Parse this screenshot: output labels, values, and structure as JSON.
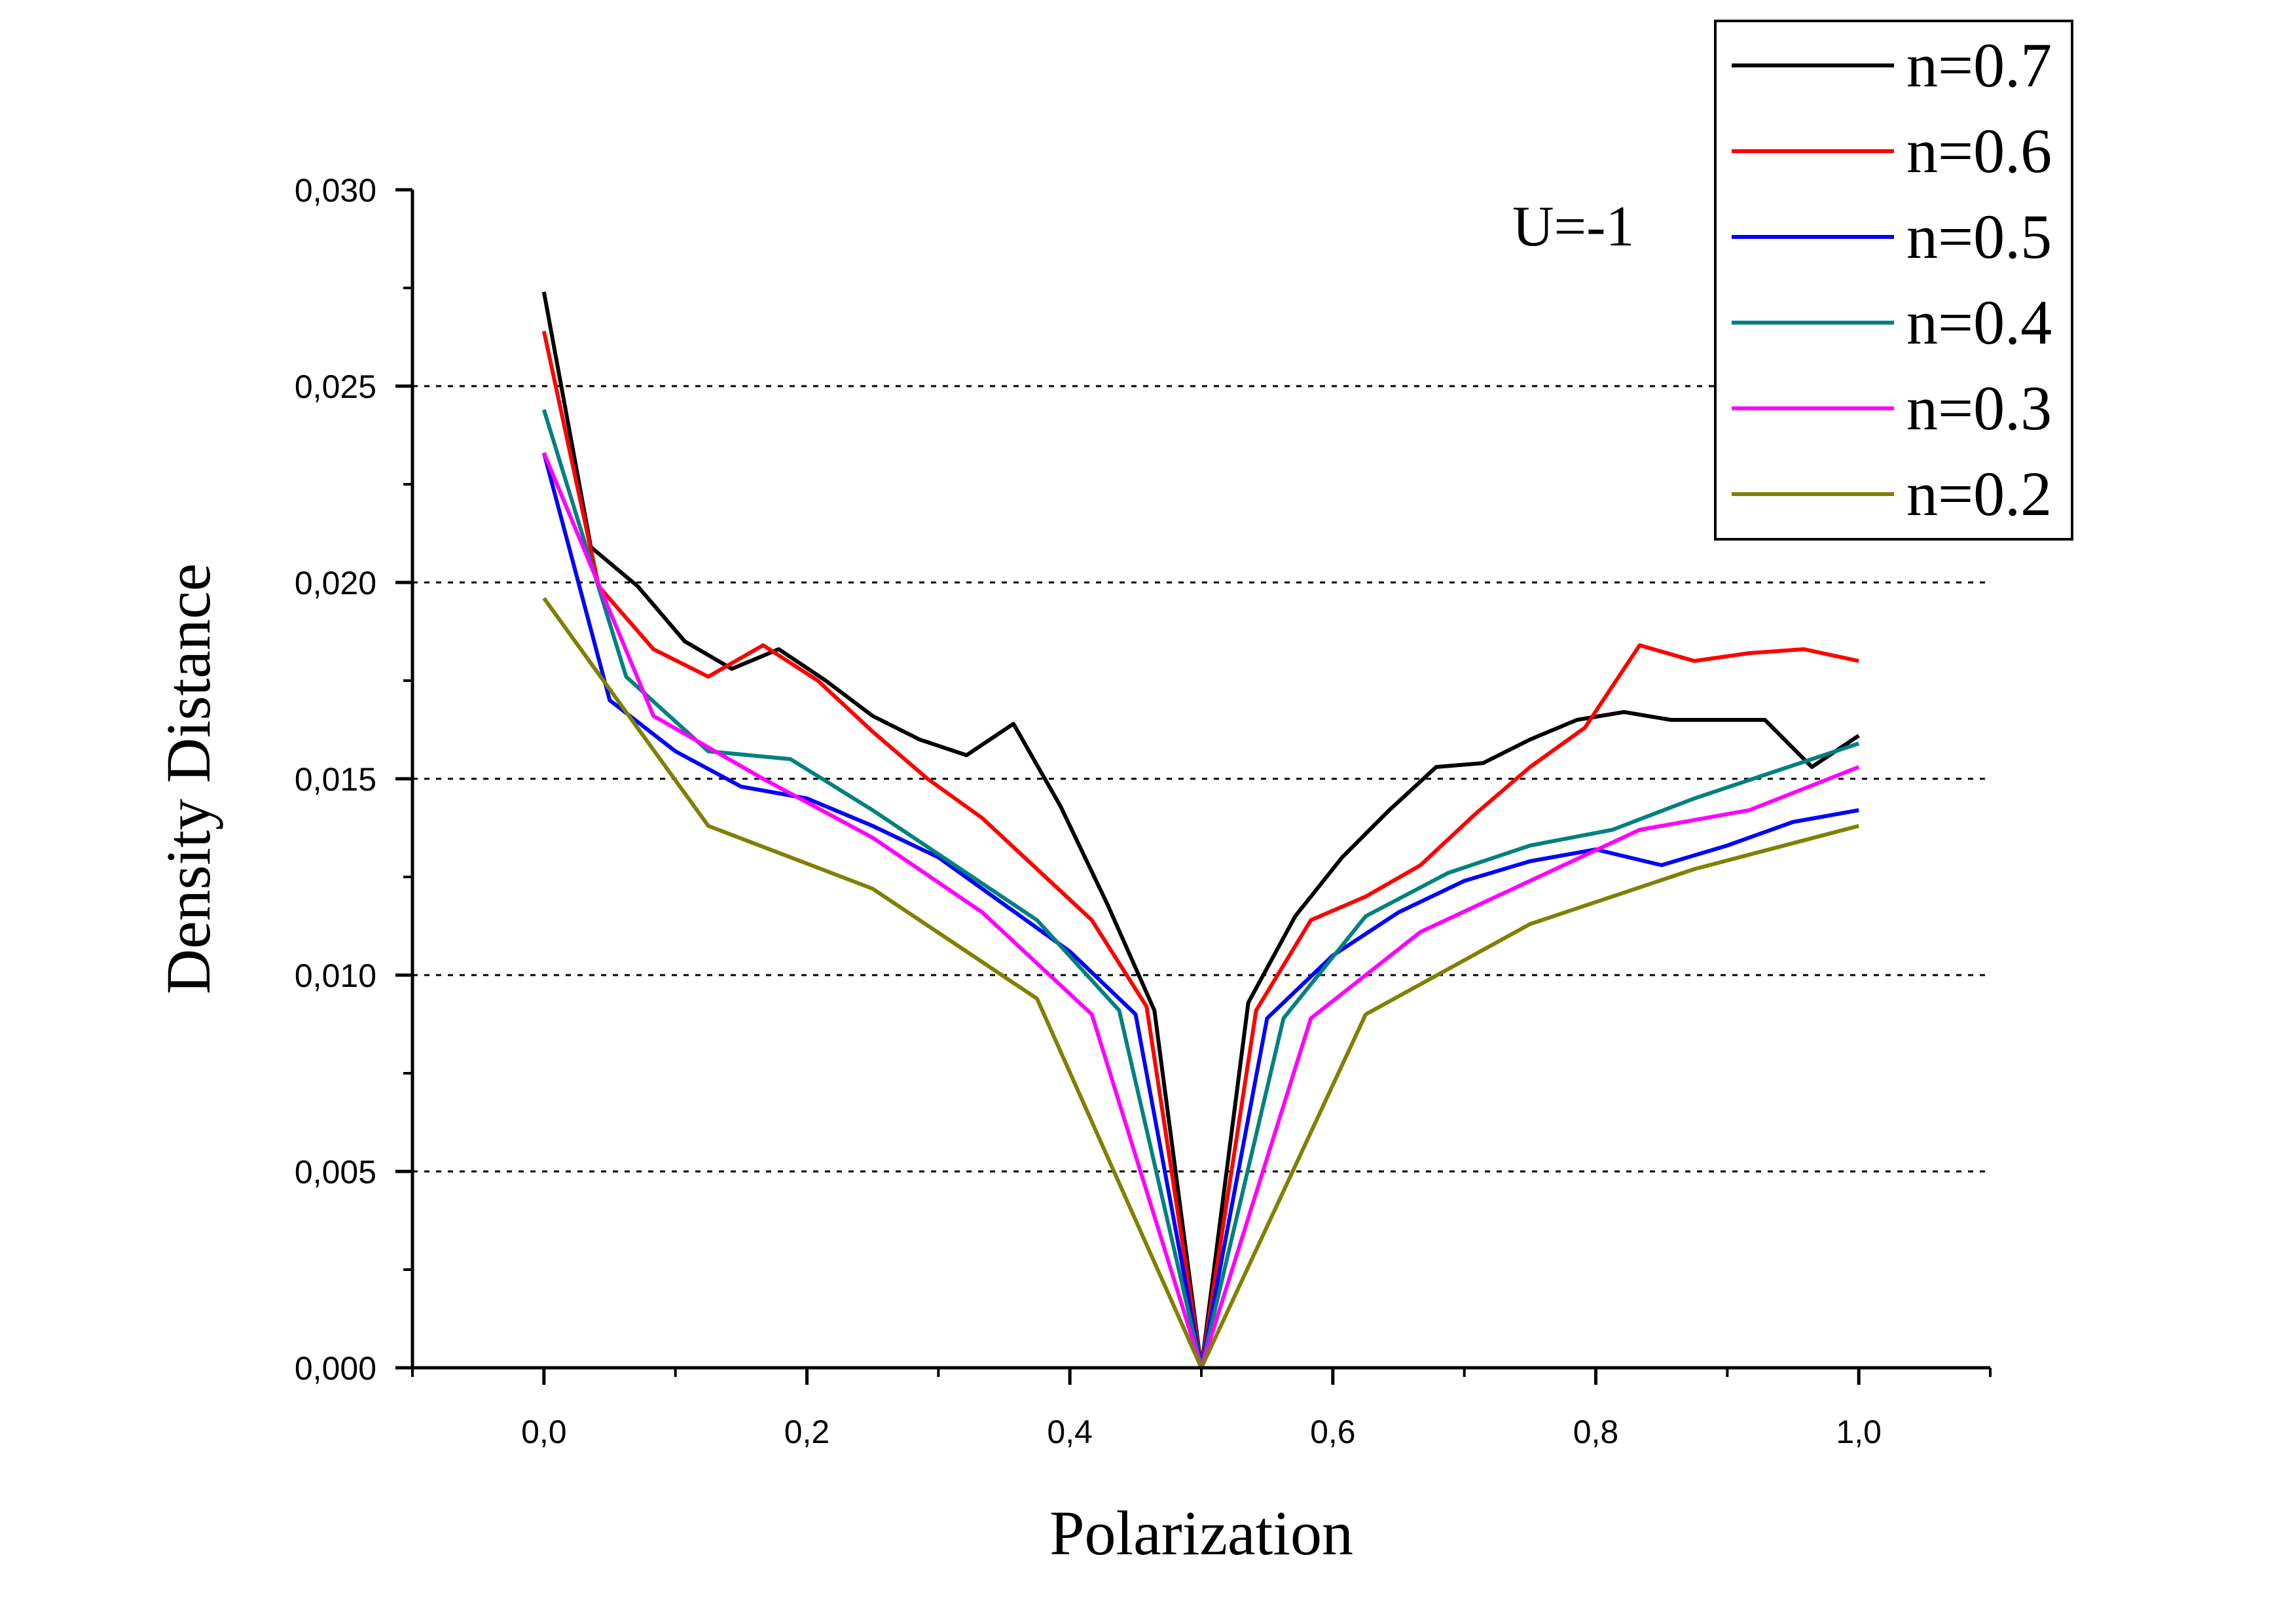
{
  "chart_data": {
    "type": "line",
    "title": "",
    "xlabel": "Polarization",
    "ylabel": "Density Distance",
    "annotation": "U=-1",
    "xlim": [
      -0.1,
      1.1
    ],
    "ylim": [
      0.0,
      0.03
    ],
    "x_ticks": [
      0.0,
      0.2,
      0.4,
      0.6,
      0.8,
      1.0
    ],
    "x_tick_labels": [
      "0,0",
      "0,2",
      "0,4",
      "0,6",
      "0,8",
      "1,0"
    ],
    "y_ticks": [
      0.0,
      0.005,
      0.01,
      0.015,
      0.02,
      0.025,
      0.03
    ],
    "y_tick_labels": [
      "0,000",
      "0,005",
      "0,010",
      "0,015",
      "0,020",
      "0,025",
      "0,030"
    ],
    "grid": "horizontal dotted at major y ticks",
    "legend_position": "top-right",
    "series": [
      {
        "name": "n=0.7",
        "color": "#000000",
        "x": [
          0.0,
          0.0357,
          0.0714,
          0.1071,
          0.1429,
          0.1786,
          0.2143,
          0.25,
          0.2857,
          0.3214,
          0.3571,
          0.3929,
          0.4286,
          0.4643,
          0.5,
          0.5357,
          0.5714,
          0.6071,
          0.6429,
          0.6786,
          0.7143,
          0.75,
          0.7857,
          0.8214,
          0.8571,
          0.8929,
          0.9286,
          0.9643,
          1.0
        ],
        "y": [
          0.0274,
          0.0209,
          0.0199,
          0.0185,
          0.0178,
          0.0183,
          0.0175,
          0.0166,
          0.016,
          0.0156,
          0.0164,
          0.0143,
          0.0118,
          0.0091,
          0.0,
          0.0093,
          0.0115,
          0.013,
          0.0142,
          0.0153,
          0.0154,
          0.016,
          0.0165,
          0.0167,
          0.0165,
          0.0165,
          0.0165,
          0.0153,
          0.0161
        ]
      },
      {
        "name": "n=0.6",
        "color": "#ff0000",
        "x": [
          0.0,
          0.0417,
          0.0833,
          0.125,
          0.1667,
          0.2083,
          0.25,
          0.2917,
          0.3333,
          0.375,
          0.4167,
          0.4583,
          0.5,
          0.5417,
          0.5833,
          0.625,
          0.6667,
          0.7083,
          0.75,
          0.7917,
          0.8333,
          0.875,
          0.9167,
          0.9583,
          1.0
        ],
        "y": [
          0.0264,
          0.0199,
          0.0183,
          0.0176,
          0.0184,
          0.0175,
          0.0162,
          0.015,
          0.014,
          0.0127,
          0.0114,
          0.0092,
          0.0,
          0.0091,
          0.0114,
          0.012,
          0.0128,
          0.0141,
          0.0153,
          0.0163,
          0.0184,
          0.018,
          0.0182,
          0.0183,
          0.018
        ]
      },
      {
        "name": "n=0.5",
        "color": "#0000ff",
        "x": [
          0.0,
          0.05,
          0.1,
          0.15,
          0.2,
          0.25,
          0.3,
          0.35,
          0.4,
          0.45,
          0.5,
          0.55,
          0.6,
          0.65,
          0.7,
          0.75,
          0.8,
          0.85,
          0.9,
          0.95,
          1.0
        ],
        "y": [
          0.0233,
          0.017,
          0.0157,
          0.0148,
          0.0145,
          0.0138,
          0.013,
          0.0118,
          0.0106,
          0.009,
          0.0,
          0.0089,
          0.0105,
          0.0116,
          0.0124,
          0.0129,
          0.0132,
          0.0128,
          0.0133,
          0.0139,
          0.0142
        ]
      },
      {
        "name": "n=0.4",
        "color": "#008080",
        "x": [
          0.0,
          0.0625,
          0.125,
          0.1875,
          0.25,
          0.3125,
          0.375,
          0.4375,
          0.5,
          0.5625,
          0.625,
          0.6875,
          0.75,
          0.8125,
          0.875,
          0.9375,
          1.0
        ],
        "y": [
          0.0244,
          0.0176,
          0.0157,
          0.0155,
          0.0142,
          0.0128,
          0.0114,
          0.0091,
          0.0,
          0.0089,
          0.0115,
          0.0126,
          0.0133,
          0.0137,
          0.0145,
          0.0152,
          0.0159
        ]
      },
      {
        "name": "n=0.3",
        "color": "#ff00ff",
        "x": [
          0.0,
          0.0833,
          0.1667,
          0.25,
          0.3333,
          0.4167,
          0.5,
          0.5833,
          0.6667,
          0.75,
          0.8333,
          0.9167,
          1.0
        ],
        "y": [
          0.0233,
          0.0166,
          0.015,
          0.0135,
          0.0116,
          0.009,
          0.0,
          0.0089,
          0.0111,
          0.0124,
          0.0137,
          0.0142,
          0.0153
        ]
      },
      {
        "name": "n=0.2",
        "color": "#808000",
        "x": [
          0.0,
          0.125,
          0.25,
          0.375,
          0.5,
          0.625,
          0.75,
          0.875,
          1.0
        ],
        "y": [
          0.0196,
          0.0138,
          0.0122,
          0.0094,
          0.0,
          0.009,
          0.0113,
          0.0127,
          0.0138
        ]
      }
    ]
  }
}
